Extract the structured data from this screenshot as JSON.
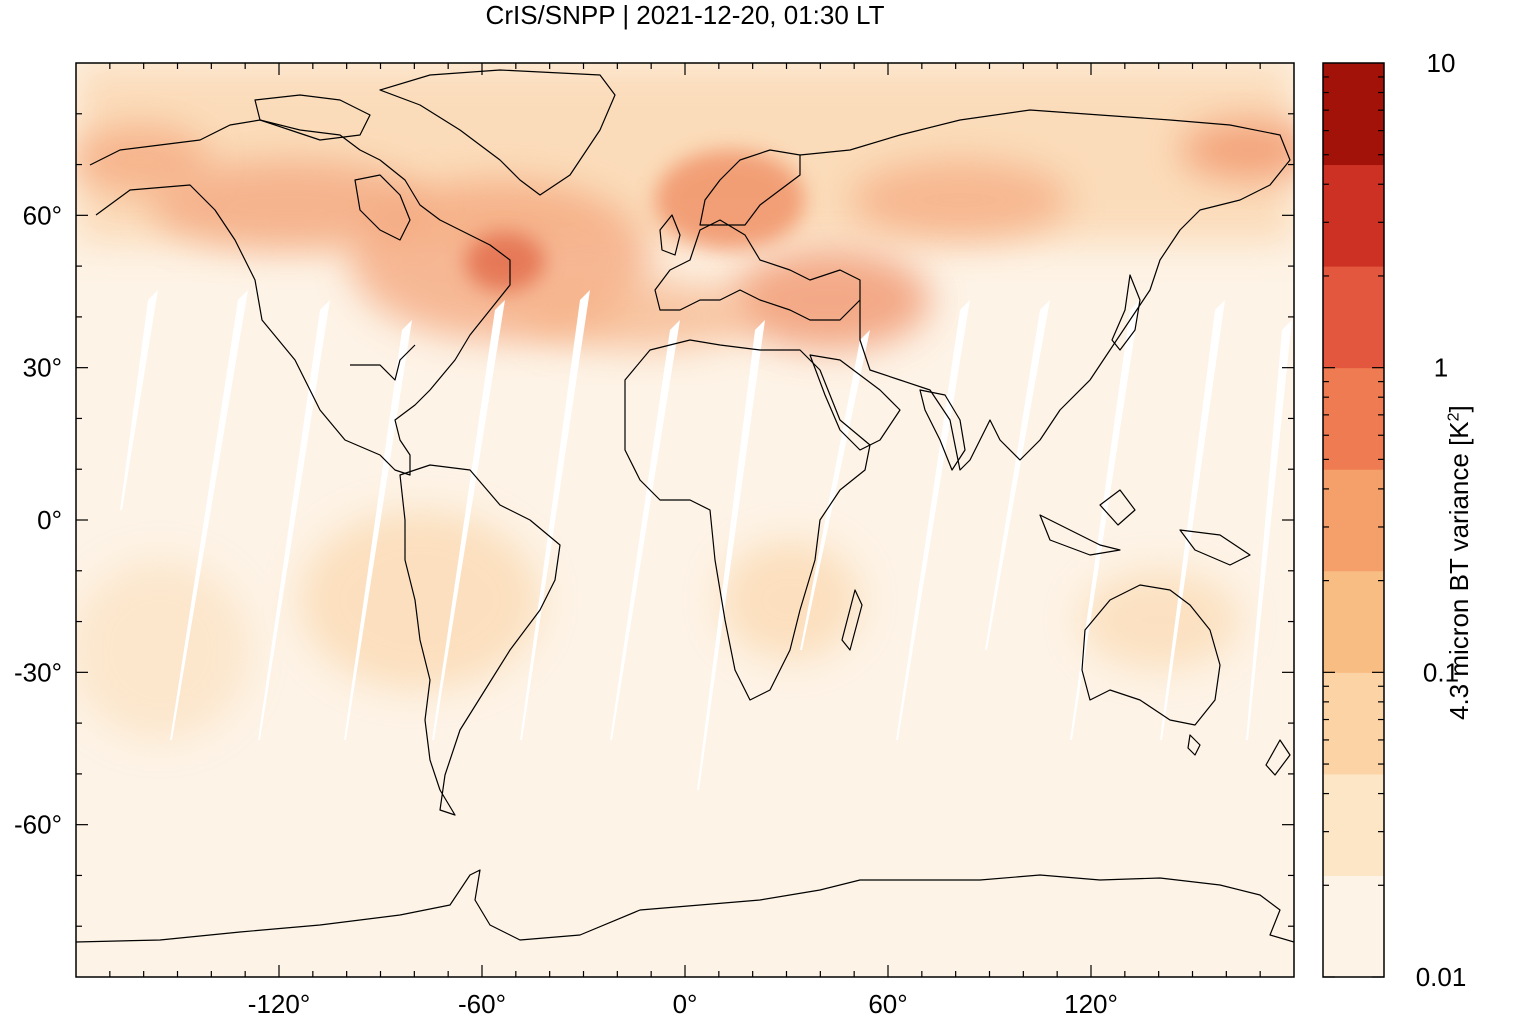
{
  "title": "CrIS/SNPP | 2021-12-20, 01:30 LT",
  "map": {
    "projection": "equirectangular",
    "lon_range": [
      -180,
      180
    ],
    "lat_range": [
      -90,
      90
    ],
    "x_ticks": [
      {
        "value": -120,
        "label": "-120°"
      },
      {
        "value": -60,
        "label": "-60°"
      },
      {
        "value": 0,
        "label": "0°"
      },
      {
        "value": 60,
        "label": "60°"
      },
      {
        "value": 120,
        "label": "120°"
      }
    ],
    "y_ticks": [
      {
        "value": 60,
        "label": "60°"
      },
      {
        "value": 30,
        "label": "30°"
      },
      {
        "value": 0,
        "label": "0°"
      },
      {
        "value": -30,
        "label": "-30°"
      },
      {
        "value": -60,
        "label": "-60°"
      }
    ],
    "background_color": "#fdf3e6",
    "coastline_color": "#000000"
  },
  "colorbar": {
    "label_main": "4.3 micron BT variance [K",
    "label_sup": "2",
    "label_end": "]",
    "scale": "log",
    "range": [
      0.01,
      10
    ],
    "tick_labels": [
      "10",
      "1",
      "0.1",
      "0.01"
    ],
    "colors": [
      "#fdf3e6",
      "#fce6c6",
      "#fbd3a4",
      "#f8bd83",
      "#f59f6a",
      "#ee7b52",
      "#e2573e",
      "#cc3123",
      "#a31208"
    ]
  }
}
